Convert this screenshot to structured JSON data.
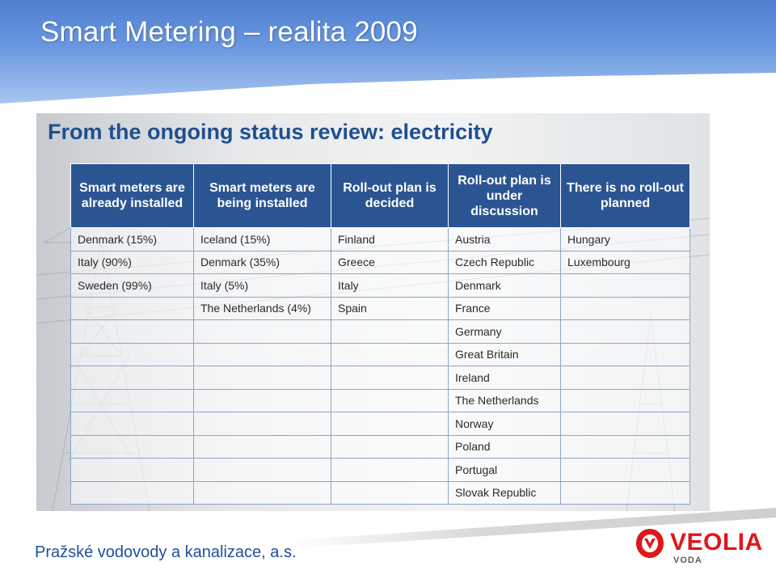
{
  "header": {
    "title": "Smart  Metering – realita 2009"
  },
  "panel": {
    "heading": "From the ongoing status review: electricity",
    "table": {
      "columns": [
        "Smart meters are already installed",
        "Smart meters are being installed",
        "Roll-out plan is decided",
        "Roll-out plan is under discussion",
        "There is no roll-out planned"
      ],
      "rows": [
        [
          "Denmark (15%)",
          "Iceland (15%)",
          "Finland",
          "Austria",
          "Hungary"
        ],
        [
          "Italy (90%)",
          "Denmark (35%)",
          "Greece",
          "Czech Republic",
          "Luxembourg"
        ],
        [
          "Sweden (99%)",
          "Italy (5%)",
          "Italy",
          "Denmark",
          ""
        ],
        [
          "",
          "The Netherlands (4%)",
          "Spain",
          "France",
          ""
        ],
        [
          "",
          "",
          "",
          "Germany",
          ""
        ],
        [
          "",
          "",
          "",
          "Great Britain",
          ""
        ],
        [
          "",
          "",
          "",
          "Ireland",
          ""
        ],
        [
          "",
          "",
          "",
          "The Netherlands",
          ""
        ],
        [
          "",
          "",
          "",
          "Norway",
          ""
        ],
        [
          "",
          "",
          "",
          "Poland",
          ""
        ],
        [
          "",
          "",
          "",
          "Portugal",
          ""
        ],
        [
          "",
          "",
          "",
          "Slovak Republic",
          ""
        ]
      ]
    }
  },
  "footer": {
    "company": "Pražské vodovody a kanalizace, a.s.",
    "logo": {
      "name": "VEOLIA",
      "sub": "VODA",
      "icon": "veolia-logo-icon"
    }
  },
  "colors": {
    "header": "#5b8ad6",
    "table_header": "#2b5592",
    "heading": "#1f4f8f",
    "logo_red": "#e0161a",
    "company_text": "#1f4f9f"
  }
}
